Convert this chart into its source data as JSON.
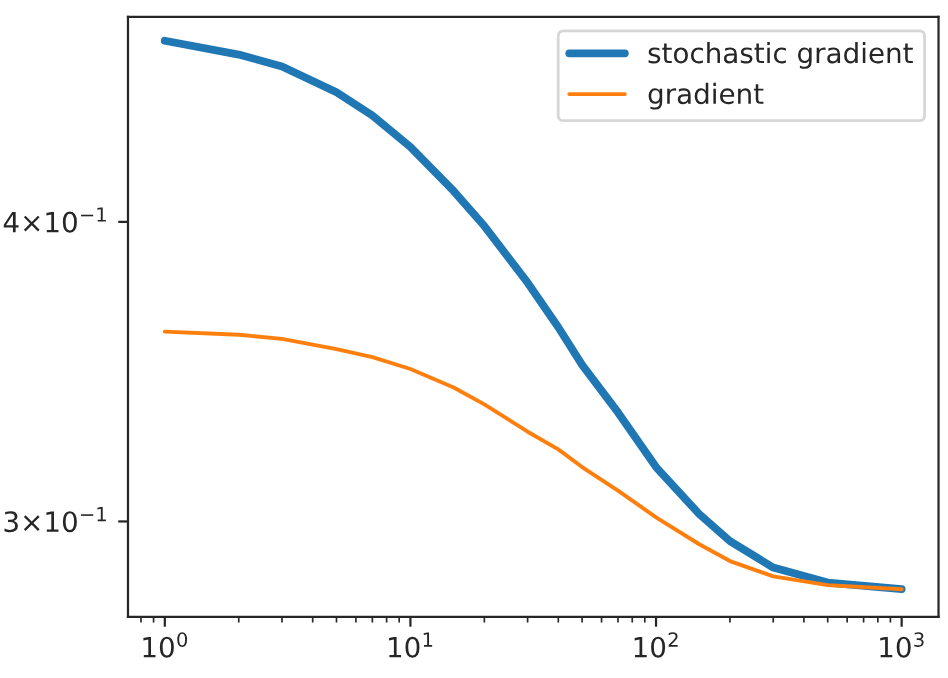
{
  "chart_data": {
    "type": "line",
    "log": "xy",
    "grid": false,
    "legend": "top right",
    "xlim": [
      0.708,
      1413
    ],
    "ylim": [
      0.2737,
      0.487
    ],
    "xticks": [
      {
        "value": 1,
        "label": "10$^{0}$"
      },
      {
        "value": 10,
        "label": "10$^{1}$"
      },
      {
        "value": 100,
        "label": "10$^{2}$"
      },
      {
        "value": 1000,
        "label": "10$^{3}$"
      }
    ],
    "yticks": [
      {
        "value": 0.3,
        "label": "3×10$^{−1}$"
      },
      {
        "value": 0.4,
        "label": "4×10$^{−1}$"
      }
    ],
    "x": [
      1,
      2,
      3,
      5,
      7,
      10,
      15,
      20,
      30,
      40,
      50,
      70,
      100,
      150,
      200,
      300,
      500,
      1000
    ],
    "series": [
      {
        "name": "stochastic gradient",
        "color": "#1f77b4",
        "values": [
          0.476,
          0.4697,
          0.4644,
          0.453,
          0.443,
          0.4298,
          0.412,
          0.3984,
          0.3773,
          0.3615,
          0.3487,
          0.3331,
          0.3161,
          0.3021,
          0.2944,
          0.287,
          0.2829,
          0.2811
        ]
      },
      {
        "name": "gradient",
        "color": "#ff7f0e",
        "values": [
          0.36,
          0.3589,
          0.3575,
          0.354,
          0.3513,
          0.3473,
          0.3412,
          0.3357,
          0.327,
          0.3215,
          0.3161,
          0.309,
          0.3012,
          0.2935,
          0.2888,
          0.2846,
          0.2822,
          0.2811
        ]
      }
    ]
  }
}
